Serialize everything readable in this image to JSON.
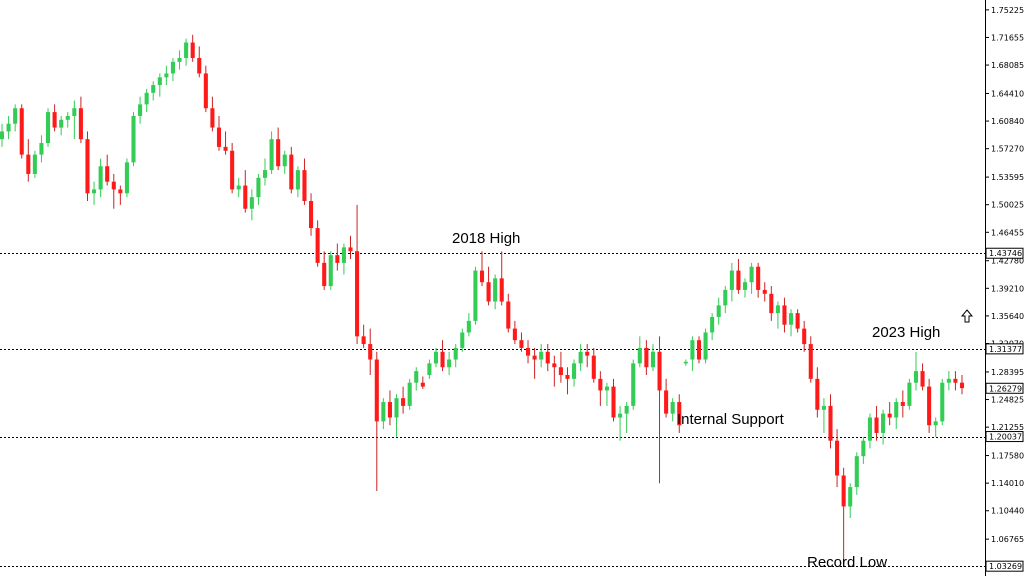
{
  "chart_data": {
    "type": "candlestick",
    "ylim": [
      1.02,
      1.765
    ],
    "y_ticks": [
      "1.75225",
      "1.71655",
      "1.68085",
      "1.64410",
      "1.60840",
      "1.57270",
      "1.53595",
      "1.50025",
      "1.46455",
      "1.42780",
      "1.39210",
      "1.35640",
      "1.32070",
      "1.28395",
      "1.24825",
      "1.21255",
      "1.17580",
      "1.14010",
      "1.10440",
      "1.06765"
    ],
    "levels": [
      {
        "label": "2018 High",
        "value": "1.43746"
      },
      {
        "label": "2023 High",
        "value": "1.31377"
      },
      {
        "label": "Internal Support",
        "value": "1.20037"
      },
      {
        "label": "Record Low",
        "value": "1.03269"
      }
    ],
    "current_price": "1.26279",
    "colors": {
      "bull": "#33cc55",
      "bear": "#ff1a1a",
      "bear_wick": "#cc2222",
      "level_line": "#000000",
      "axis": "#000000"
    },
    "icons": [
      "up-arrow-icon"
    ],
    "candles": [
      [
        1.585,
        1.605,
        1.575,
        1.595
      ],
      [
        1.595,
        1.615,
        1.585,
        1.605
      ],
      [
        1.605,
        1.63,
        1.595,
        1.625
      ],
      [
        1.625,
        1.63,
        1.56,
        1.565
      ],
      [
        1.565,
        1.585,
        1.53,
        1.54
      ],
      [
        1.54,
        1.57,
        1.535,
        1.565
      ],
      [
        1.565,
        1.59,
        1.555,
        1.58
      ],
      [
        1.58,
        1.625,
        1.575,
        1.62
      ],
      [
        1.62,
        1.63,
        1.595,
        1.6
      ],
      [
        1.6,
        1.615,
        1.59,
        1.61
      ],
      [
        1.61,
        1.62,
        1.6,
        1.615
      ],
      [
        1.615,
        1.635,
        1.585,
        1.625
      ],
      [
        1.625,
        1.64,
        1.58,
        1.585
      ],
      [
        1.585,
        1.595,
        1.505,
        1.515
      ],
      [
        1.515,
        1.53,
        1.5,
        1.52
      ],
      [
        1.52,
        1.56,
        1.51,
        1.55
      ],
      [
        1.55,
        1.565,
        1.525,
        1.53
      ],
      [
        1.53,
        1.54,
        1.495,
        1.52
      ],
      [
        1.52,
        1.525,
        1.5,
        1.515
      ],
      [
        1.515,
        1.56,
        1.51,
        1.555
      ],
      [
        1.555,
        1.62,
        1.55,
        1.615
      ],
      [
        1.615,
        1.64,
        1.605,
        1.63
      ],
      [
        1.63,
        1.65,
        1.62,
        1.645
      ],
      [
        1.645,
        1.66,
        1.635,
        1.655
      ],
      [
        1.655,
        1.67,
        1.64,
        1.665
      ],
      [
        1.665,
        1.68,
        1.655,
        1.67
      ],
      [
        1.67,
        1.69,
        1.66,
        1.685
      ],
      [
        1.685,
        1.7,
        1.675,
        1.69
      ],
      [
        1.69,
        1.715,
        1.68,
        1.71
      ],
      [
        1.71,
        1.72,
        1.685,
        1.69
      ],
      [
        1.69,
        1.705,
        1.665,
        1.67
      ],
      [
        1.67,
        1.68,
        1.62,
        1.625
      ],
      [
        1.625,
        1.64,
        1.595,
        1.6
      ],
      [
        1.6,
        1.615,
        1.57,
        1.575
      ],
      [
        1.575,
        1.595,
        1.565,
        1.57
      ],
      [
        1.57,
        1.58,
        1.515,
        1.52
      ],
      [
        1.52,
        1.535,
        1.51,
        1.525
      ],
      [
        1.525,
        1.545,
        1.49,
        1.495
      ],
      [
        1.495,
        1.52,
        1.48,
        1.51
      ],
      [
        1.51,
        1.54,
        1.5,
        1.535
      ],
      [
        1.535,
        1.56,
        1.525,
        1.545
      ],
      [
        1.545,
        1.595,
        1.54,
        1.585
      ],
      [
        1.585,
        1.6,
        1.545,
        1.55
      ],
      [
        1.55,
        1.57,
        1.54,
        1.565
      ],
      [
        1.565,
        1.575,
        1.515,
        1.52
      ],
      [
        1.52,
        1.55,
        1.51,
        1.545
      ],
      [
        1.545,
        1.56,
        1.5,
        1.505
      ],
      [
        1.505,
        1.515,
        1.46,
        1.47
      ],
      [
        1.47,
        1.48,
        1.42,
        1.425
      ],
      [
        1.425,
        1.44,
        1.39,
        1.395
      ],
      [
        1.395,
        1.44,
        1.39,
        1.435
      ],
      [
        1.435,
        1.45,
        1.415,
        1.425
      ],
      [
        1.425,
        1.45,
        1.41,
        1.445
      ],
      [
        1.445,
        1.46,
        1.43,
        1.44
      ],
      [
        1.44,
        1.5,
        1.32,
        1.33
      ],
      [
        1.33,
        1.345,
        1.315,
        1.32
      ],
      [
        1.32,
        1.34,
        1.28,
        1.3
      ],
      [
        1.3,
        1.31,
        1.13,
        1.22
      ],
      [
        1.22,
        1.25,
        1.21,
        1.245
      ],
      [
        1.245,
        1.26,
        1.215,
        1.225
      ],
      [
        1.225,
        1.255,
        1.2,
        1.25
      ],
      [
        1.25,
        1.265,
        1.23,
        1.24
      ],
      [
        1.24,
        1.275,
        1.235,
        1.27
      ],
      [
        1.27,
        1.29,
        1.26,
        1.285
      ],
      [
        1.27,
        1.278,
        1.262,
        1.265
      ],
      [
        1.28,
        1.3,
        1.275,
        1.295
      ],
      [
        1.295,
        1.315,
        1.29,
        1.31
      ],
      [
        1.31,
        1.325,
        1.285,
        1.29
      ],
      [
        1.29,
        1.31,
        1.28,
        1.3
      ],
      [
        1.3,
        1.32,
        1.29,
        1.315
      ],
      [
        1.315,
        1.34,
        1.31,
        1.335
      ],
      [
        1.335,
        1.36,
        1.33,
        1.35
      ],
      [
        1.35,
        1.42,
        1.345,
        1.415
      ],
      [
        1.415,
        1.44,
        1.395,
        1.4
      ],
      [
        1.4,
        1.42,
        1.37,
        1.375
      ],
      [
        1.375,
        1.41,
        1.365,
        1.405
      ],
      [
        1.405,
        1.44,
        1.37,
        1.375
      ],
      [
        1.375,
        1.385,
        1.335,
        1.34
      ],
      [
        1.34,
        1.35,
        1.32,
        1.325
      ],
      [
        1.325,
        1.335,
        1.31,
        1.315
      ],
      [
        1.315,
        1.325,
        1.295,
        1.305
      ],
      [
        1.305,
        1.315,
        1.275,
        1.3
      ],
      [
        1.3,
        1.32,
        1.29,
        1.31
      ],
      [
        1.31,
        1.32,
        1.285,
        1.295
      ],
      [
        1.295,
        1.305,
        1.265,
        1.29
      ],
      [
        1.29,
        1.31,
        1.27,
        1.28
      ],
      [
        1.28,
        1.29,
        1.255,
        1.275
      ],
      [
        1.275,
        1.3,
        1.265,
        1.295
      ],
      [
        1.295,
        1.32,
        1.285,
        1.31
      ],
      [
        1.31,
        1.32,
        1.29,
        1.305
      ],
      [
        1.305,
        1.315,
        1.27,
        1.275
      ],
      [
        1.275,
        1.285,
        1.24,
        1.26
      ],
      [
        1.26,
        1.27,
        1.24,
        1.265
      ],
      [
        1.265,
        1.275,
        1.22,
        1.225
      ],
      [
        1.225,
        1.24,
        1.195,
        1.23
      ],
      [
        1.23,
        1.245,
        1.205,
        1.24
      ],
      [
        1.24,
        1.3,
        1.235,
        1.295
      ],
      [
        1.295,
        1.33,
        1.29,
        1.315
      ],
      [
        1.315,
        1.325,
        1.28,
        1.29
      ],
      [
        1.29,
        1.32,
        1.285,
        1.31
      ],
      [
        1.31,
        1.33,
        1.14,
        1.26
      ],
      [
        1.26,
        1.275,
        1.225,
        1.23
      ],
      [
        1.23,
        1.25,
        1.22,
        1.245
      ],
      [
        1.245,
        1.255,
        1.205,
        1.215
      ],
      [
        1.295,
        1.3,
        1.292,
        1.297
      ],
      [
        1.3,
        1.33,
        1.285,
        1.325
      ],
      [
        1.325,
        1.33,
        1.295,
        1.3
      ],
      [
        1.3,
        1.34,
        1.295,
        1.335
      ],
      [
        1.335,
        1.36,
        1.325,
        1.355
      ],
      [
        1.355,
        1.38,
        1.345,
        1.37
      ],
      [
        1.37,
        1.395,
        1.36,
        1.39
      ],
      [
        1.39,
        1.425,
        1.375,
        1.415
      ],
      [
        1.415,
        1.43,
        1.385,
        1.39
      ],
      [
        1.39,
        1.405,
        1.38,
        1.4
      ],
      [
        1.4,
        1.425,
        1.385,
        1.42
      ],
      [
        1.42,
        1.425,
        1.38,
        1.39
      ],
      [
        1.39,
        1.4,
        1.375,
        1.385
      ],
      [
        1.385,
        1.395,
        1.35,
        1.36
      ],
      [
        1.36,
        1.375,
        1.34,
        1.37
      ],
      [
        1.37,
        1.38,
        1.335,
        1.345
      ],
      [
        1.345,
        1.365,
        1.33,
        1.36
      ],
      [
        1.36,
        1.365,
        1.335,
        1.34
      ],
      [
        1.34,
        1.35,
        1.31,
        1.32
      ],
      [
        1.32,
        1.33,
        1.27,
        1.275
      ],
      [
        1.275,
        1.29,
        1.225,
        1.235
      ],
      [
        1.235,
        1.25,
        1.205,
        1.24
      ],
      [
        1.24,
        1.255,
        1.185,
        1.195
      ],
      [
        1.195,
        1.21,
        1.135,
        1.15
      ],
      [
        1.15,
        1.16,
        1.035,
        1.11
      ],
      [
        1.11,
        1.14,
        1.095,
        1.135
      ],
      [
        1.135,
        1.18,
        1.125,
        1.175
      ],
      [
        1.175,
        1.2,
        1.165,
        1.195
      ],
      [
        1.195,
        1.23,
        1.185,
        1.225
      ],
      [
        1.225,
        1.24,
        1.195,
        1.205
      ],
      [
        1.205,
        1.235,
        1.19,
        1.23
      ],
      [
        1.23,
        1.245,
        1.215,
        1.225
      ],
      [
        1.225,
        1.25,
        1.21,
        1.245
      ],
      [
        1.245,
        1.26,
        1.225,
        1.24
      ],
      [
        1.24,
        1.275,
        1.235,
        1.27
      ],
      [
        1.27,
        1.31,
        1.26,
        1.285
      ],
      [
        1.285,
        1.295,
        1.26,
        1.265
      ],
      [
        1.265,
        1.275,
        1.205,
        1.215
      ],
      [
        1.215,
        1.225,
        1.2,
        1.22
      ],
      [
        1.22,
        1.275,
        1.215,
        1.27
      ],
      [
        1.27,
        1.285,
        1.26,
        1.275
      ],
      [
        1.275,
        1.285,
        1.26,
        1.27
      ],
      [
        1.27,
        1.28,
        1.255,
        1.263
      ]
    ]
  }
}
